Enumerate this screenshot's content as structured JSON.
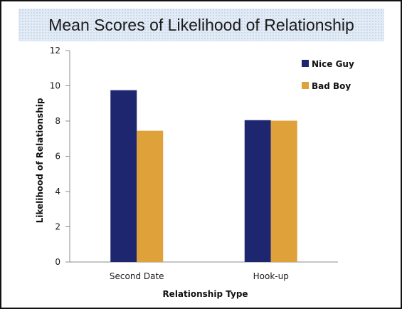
{
  "chart_data": {
    "type": "bar",
    "title": "Mean Scores of Likelihood of Relationship",
    "xlabel": "Relationship Type",
    "ylabel": "Likelihood of Relationship",
    "categories": [
      "Second Date",
      "Hook-up"
    ],
    "series": [
      {
        "name": "Nice Guy",
        "values": [
          9.75,
          8.05
        ],
        "color": "#1f2670"
      },
      {
        "name": "Bad Boy",
        "values": [
          7.45,
          8.02
        ],
        "color": "#dfa13a"
      }
    ],
    "ylim": [
      0,
      12
    ],
    "yticks": [
      "0",
      "2",
      "4",
      "6",
      "8",
      "10",
      "12"
    ],
    "grid": false,
    "legend_position": "top-right"
  }
}
